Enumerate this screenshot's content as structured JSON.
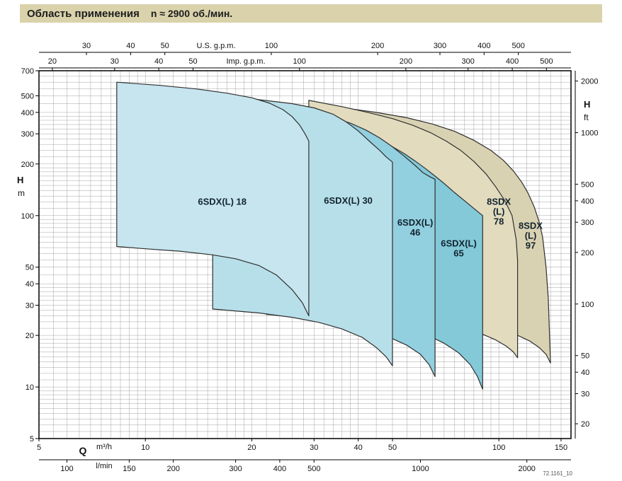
{
  "title_bar": {
    "title": "Область применения",
    "subtitle": "n ≈ 2900 об./мин."
  },
  "footnote": "72.1161_10",
  "colors": {
    "title_bar_bg": "#d9d2ab",
    "title_text": "#1c1c1c",
    "page_bg": "#ffffff",
    "grid": "#6a6a6a",
    "frame": "#000000",
    "region_outline": "#2f2f2f",
    "region_label": "#13242f",
    "tick_text": "#111111"
  },
  "chart_data": {
    "type": "area",
    "title": "Область применения n ≈ 2900 об./мин.",
    "x_quantity": "Q (flow), log scale",
    "y_quantity": "H (head), log scale",
    "q_range_m3h": [
      5,
      160
    ],
    "h_range_m": [
      5,
      700
    ],
    "grid": {
      "log_multiples": [
        1,
        1.1,
        1.2,
        1.3,
        1.4,
        1.5,
        1.6,
        1.7,
        1.8,
        1.9,
        2,
        2.2,
        2.4,
        2.6,
        2.8,
        3,
        3.2,
        3.4,
        3.6,
        3.8,
        4,
        4.5,
        5,
        5.5,
        6,
        6.5,
        7,
        7.5,
        8,
        8.5,
        9,
        9.5
      ]
    },
    "axes": {
      "q_usgpm": {
        "name": "U.S. g.p.m.",
        "ticks": [
          30,
          40,
          50,
          100,
          200,
          300,
          400,
          500
        ],
        "m3h_per_unit": 0.2271
      },
      "q_impgpm": {
        "name": "Imp. g.p.m.",
        "ticks": [
          20,
          30,
          40,
          50,
          100,
          200,
          300,
          400,
          500
        ],
        "m3h_per_unit": 0.2728
      },
      "q_m3h": {
        "name": "m³/h",
        "ticks": [
          5,
          10,
          20,
          30,
          40,
          50,
          100,
          150
        ]
      },
      "q_lmin": {
        "name": "l/min",
        "ticks": [
          100,
          150,
          200,
          300,
          400,
          500,
          1000,
          2000
        ],
        "m3h_per_unit": 0.06
      },
      "h_m": {
        "name_big": "H",
        "name_small": "m",
        "ticks": [
          5,
          10,
          20,
          30,
          40,
          50,
          100,
          200,
          300,
          400,
          500,
          700
        ]
      },
      "h_ft": {
        "name_big": "H",
        "name_small": "ft",
        "ticks": [
          20,
          30,
          40,
          50,
          100,
          200,
          300,
          400,
          500,
          1000,
          2000
        ],
        "m_per_unit": 0.3048
      },
      "q_label": "Q"
    },
    "regions_note": "listed back-to-front draw order; points are [Q m3/h, H m] outlines",
    "regions": [
      {
        "id": "8sdx-97",
        "model": "8SDX(L) 97",
        "label_lines": [
          "8SDX",
          "(L)",
          "97"
        ],
        "label_at": [
          123,
          76
        ],
        "fill": "#d9d2b2",
        "points": [
          [
            35,
            28.5
          ],
          [
            35,
            430
          ],
          [
            45,
            400
          ],
          [
            55,
            372
          ],
          [
            65,
            342
          ],
          [
            75,
            310
          ],
          [
            85,
            275
          ],
          [
            95,
            240
          ],
          [
            103,
            210
          ],
          [
            110,
            182
          ],
          [
            116,
            157
          ],
          [
            121,
            135
          ],
          [
            126,
            112
          ],
          [
            130,
            92
          ],
          [
            133,
            75
          ],
          [
            136,
            50
          ],
          [
            138,
            33
          ],
          [
            140,
            13.8
          ],
          [
            136,
            15.5
          ],
          [
            130,
            17
          ],
          [
            122,
            18.6
          ],
          [
            113,
            20
          ],
          [
            103,
            21.6
          ],
          [
            92,
            23.4
          ],
          [
            80,
            25.2
          ],
          [
            68,
            26.6
          ],
          [
            55,
            27.6
          ],
          [
            44,
            28.2
          ]
        ]
      },
      {
        "id": "8sdx-78",
        "model": "8SDX(L) 78",
        "label_lines": [
          "8SDX",
          "(L)",
          "78"
        ],
        "label_at": [
          100,
          105
        ],
        "fill": "#e2dbbe",
        "points": [
          [
            29,
            28.5
          ],
          [
            29,
            470
          ],
          [
            36,
            432
          ],
          [
            43,
            398
          ],
          [
            50,
            368
          ],
          [
            57,
            337
          ],
          [
            64,
            305
          ],
          [
            71,
            272
          ],
          [
            78,
            240
          ],
          [
            85,
            207
          ],
          [
            92,
            175
          ],
          [
            98,
            147
          ],
          [
            104,
            122
          ],
          [
            109,
            100
          ],
          [
            112,
            72
          ],
          [
            113,
            55
          ],
          [
            113,
            14.8
          ],
          [
            110,
            16
          ],
          [
            105,
            17.3
          ],
          [
            98,
            18.8
          ],
          [
            90,
            20.3
          ],
          [
            80,
            22.3
          ],
          [
            70,
            24
          ],
          [
            58,
            25.8
          ],
          [
            46,
            27.2
          ],
          [
            36,
            28
          ]
        ]
      },
      {
        "id": "6sdx-65",
        "model": "6SDX(L) 65",
        "label_lines": [
          "6SDX(L)",
          "65"
        ],
        "label_at": [
          77,
          64
        ],
        "fill": "#83c9d8",
        "points": [
          [
            30,
            25.5
          ],
          [
            30,
            360
          ],
          [
            35,
            335
          ],
          [
            40,
            310
          ],
          [
            45,
            282
          ],
          [
            50,
            252
          ],
          [
            54,
            230
          ],
          [
            58,
            208
          ],
          [
            62,
            188
          ],
          [
            66,
            170
          ],
          [
            70,
            154
          ],
          [
            75,
            136
          ],
          [
            80,
            122
          ],
          [
            85,
            110
          ],
          [
            90,
            100
          ],
          [
            90,
            9.7
          ],
          [
            87,
            11.5
          ],
          [
            83,
            13.5
          ],
          [
            77,
            15.8
          ],
          [
            70,
            18
          ],
          [
            62,
            20.3
          ],
          [
            54,
            22.3
          ],
          [
            46,
            24
          ],
          [
            38,
            25
          ]
        ]
      },
      {
        "id": "6sdx-46",
        "model": "6SDX(L) 46",
        "label_lines": [
          "6SDX(L)",
          "46"
        ],
        "label_at": [
          58,
          85
        ],
        "fill": "#92cfdf",
        "points": [
          [
            22,
            26.5
          ],
          [
            22,
            430
          ],
          [
            26,
            412
          ],
          [
            30,
            394
          ],
          [
            34,
            372
          ],
          [
            38,
            346
          ],
          [
            42,
            316
          ],
          [
            46,
            284
          ],
          [
            50,
            252
          ],
          [
            54,
            222
          ],
          [
            58,
            196
          ],
          [
            61,
            178
          ],
          [
            64,
            168
          ],
          [
            66,
            163
          ],
          [
            66,
            11.5
          ],
          [
            63.5,
            13.5
          ],
          [
            60,
            15.5
          ],
          [
            55,
            17.5
          ],
          [
            49,
            19.5
          ],
          [
            43,
            21.5
          ],
          [
            37,
            23.3
          ],
          [
            30,
            25
          ]
        ]
      },
      {
        "id": "6sdx-30",
        "model": "6SDX(L) 30",
        "label_lines": [
          "6SDX(L) 30"
        ],
        "label_at": [
          37.5,
          122
        ],
        "fill": "#b7dfe9",
        "points": [
          [
            15.5,
            28.5
          ],
          [
            15.5,
            510
          ],
          [
            20,
            480
          ],
          [
            26,
            450
          ],
          [
            30,
            425
          ],
          [
            34,
            390
          ],
          [
            37,
            352
          ],
          [
            40,
            312
          ],
          [
            43,
            272
          ],
          [
            46,
            240
          ],
          [
            48,
            220
          ],
          [
            50,
            205
          ],
          [
            50,
            13.3
          ],
          [
            48,
            15
          ],
          [
            45,
            17
          ],
          [
            41,
            19.5
          ],
          [
            36,
            21.8
          ],
          [
            31,
            23.8
          ],
          [
            26,
            25.5
          ],
          [
            21,
            27
          ]
        ]
      },
      {
        "id": "6sdx-18",
        "model": "6SDX(L) 18",
        "label_lines": [
          "6SDX(L) 18"
        ],
        "label_at": [
          16.5,
          120
        ],
        "fill": "#c6e5ef",
        "points": [
          [
            8.3,
            66
          ],
          [
            8.3,
            600
          ],
          [
            11,
            575
          ],
          [
            14,
            548
          ],
          [
            17,
            518
          ],
          [
            20,
            487
          ],
          [
            22.5,
            452
          ],
          [
            24.5,
            415
          ],
          [
            26,
            378
          ],
          [
            27.3,
            338
          ],
          [
            28.3,
            300
          ],
          [
            29,
            272
          ],
          [
            29,
            26
          ],
          [
            27.8,
            31
          ],
          [
            26,
            37
          ],
          [
            23.5,
            45
          ],
          [
            21,
            51
          ],
          [
            18,
            56
          ],
          [
            15.5,
            59
          ],
          [
            12.5,
            62
          ],
          [
            10,
            64
          ]
        ]
      }
    ]
  }
}
